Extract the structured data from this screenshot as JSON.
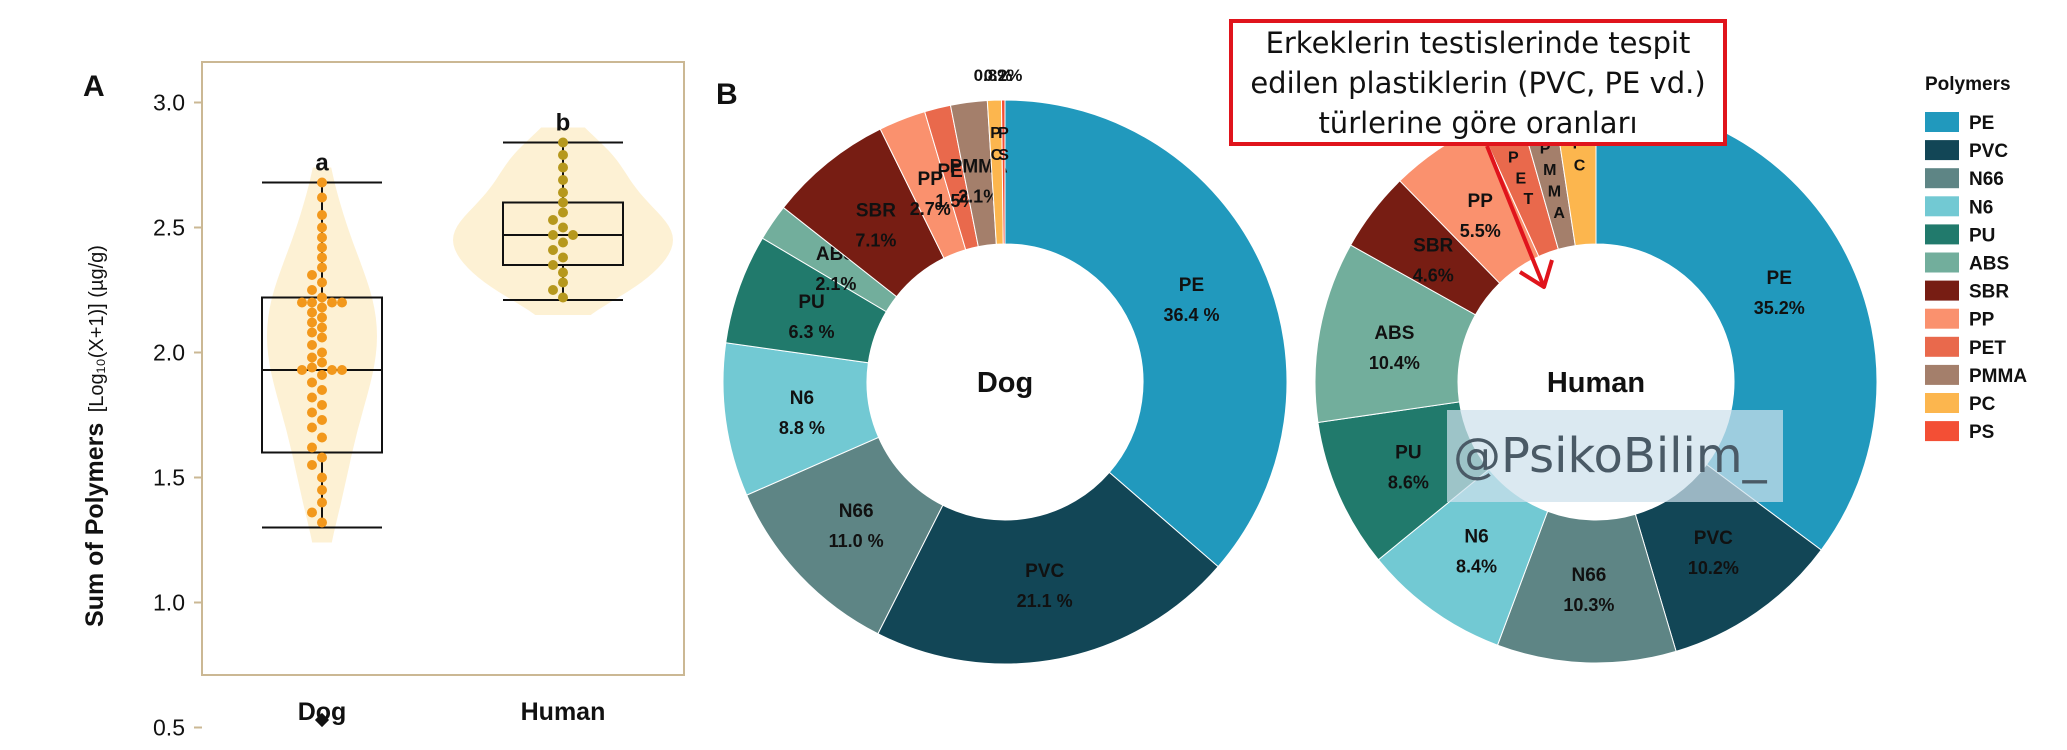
{
  "chart_data": [
    {
      "type": "box",
      "panel_label": "A",
      "ylabel_main": "Sum of Polymers",
      "ylabel_unit": "[Log₁₀(X+1)] (µg/g)",
      "ylim": [
        0.35,
        3.25
      ],
      "yticks": [
        0.5,
        1.0,
        1.5,
        2.0,
        2.5,
        3.0
      ],
      "ytick_labels": [
        "0.5",
        "1.0",
        "1.5",
        "2.0",
        "2.5",
        "3.0"
      ],
      "categories": [
        "Dog",
        "Human"
      ],
      "significance": [
        "a",
        "b"
      ],
      "colors": {
        "Dog": "#f2981c",
        "Human": "#b6981d",
        "violin": "#fdefcf",
        "frame": "#cbb894"
      },
      "boxes": [
        {
          "name": "Dog",
          "whisker_low": 1.3,
          "q1": 1.6,
          "median": 1.93,
          "q3": 2.22,
          "whisker_high": 2.68,
          "outliers": [
            0.53
          ],
          "points": [
            2.68,
            2.62,
            2.55,
            2.5,
            2.46,
            2.42,
            2.38,
            2.34,
            2.31,
            2.28,
            2.25,
            2.22,
            2.2,
            2.2,
            2.2,
            2.2,
            2.18,
            2.16,
            2.14,
            2.12,
            2.1,
            2.08,
            2.06,
            2.03,
            2.0,
            1.98,
            1.96,
            1.94,
            1.93,
            1.93,
            1.93,
            1.91,
            1.88,
            1.85,
            1.82,
            1.79,
            1.76,
            1.73,
            1.7,
            1.66,
            1.62,
            1.58,
            1.55,
            1.5,
            1.45,
            1.4,
            1.36,
            1.32
          ]
        },
        {
          "name": "Human",
          "whisker_low": 2.21,
          "q1": 2.35,
          "median": 2.47,
          "q3": 2.6,
          "whisker_high": 2.84,
          "outliers": [],
          "points": [
            2.84,
            2.79,
            2.74,
            2.69,
            2.64,
            2.6,
            2.56,
            2.53,
            2.5,
            2.47,
            2.47,
            2.44,
            2.41,
            2.38,
            2.35,
            2.32,
            2.28,
            2.25,
            2.22
          ]
        }
      ]
    },
    {
      "type": "pie",
      "panel_label": "B",
      "center_label": "Dog",
      "slices": [
        {
          "name": "PE",
          "value": 36.4,
          "label": "36.4 %"
        },
        {
          "name": "PVC",
          "value": 21.1,
          "label": "21.1 %"
        },
        {
          "name": "N66",
          "value": 11.0,
          "label": "11.0  %"
        },
        {
          "name": "N6",
          "value": 8.8,
          "label": "8.8 %"
        },
        {
          "name": "PU",
          "value": 6.3,
          "label": "6.3 %"
        },
        {
          "name": "ABS",
          "value": 2.1,
          "label": "2.1%"
        },
        {
          "name": "SBR",
          "value": 7.1,
          "label": "7.1%"
        },
        {
          "name": "PP",
          "value": 2.7,
          "label": "2.7%"
        },
        {
          "name": "PET",
          "value": 1.5,
          "label": "1.5%"
        },
        {
          "name": "PMMA",
          "value": 2.1,
          "label": "2.1%"
        },
        {
          "name": "PC",
          "value": 0.8,
          "label": "0.8%"
        },
        {
          "name": "PS",
          "value": 0.2,
          "label": "0.2%"
        }
      ]
    },
    {
      "type": "pie",
      "center_label": "Human",
      "slices": [
        {
          "name": "PE",
          "value": 35.2,
          "label": "35.2%"
        },
        {
          "name": "PVC",
          "value": 10.2,
          "label": "10.2%"
        },
        {
          "name": "N66",
          "value": 10.3,
          "label": "10.3%"
        },
        {
          "name": "N6",
          "value": 8.4,
          "label": "8.4%"
        },
        {
          "name": "PU",
          "value": 8.6,
          "label": "8.6%"
        },
        {
          "name": "ABS",
          "value": 10.4,
          "label": "10.4%"
        },
        {
          "name": "SBR",
          "value": 4.6,
          "label": "4.6%"
        },
        {
          "name": "PP",
          "value": 5.5,
          "label": "5.5%"
        },
        {
          "name": "PET",
          "value": 2.4,
          "label": ""
        },
        {
          "name": "PMMA",
          "value": 2.0,
          "label": ""
        },
        {
          "name": "PC",
          "value": 2.4,
          "label": ""
        }
      ]
    }
  ],
  "legend": {
    "title": "Polymers",
    "items": [
      {
        "name": "PE",
        "color": "#2199bd"
      },
      {
        "name": "PVC",
        "color": "#124656"
      },
      {
        "name": "N66",
        "color": "#5e8585"
      },
      {
        "name": "N6",
        "color": "#72c9d3"
      },
      {
        "name": "PU",
        "color": "#217a6c"
      },
      {
        "name": "ABS",
        "color": "#72ae9c"
      },
      {
        "name": "SBR",
        "color": "#771d13"
      },
      {
        "name": "PP",
        "color": "#fa916e"
      },
      {
        "name": "PET",
        "color": "#e9694c"
      },
      {
        "name": "PMMA",
        "color": "#a47f6b"
      },
      {
        "name": "PC",
        "color": "#fcb64e"
      },
      {
        "name": "PS",
        "color": "#f34f35"
      }
    ]
  },
  "annotation": {
    "text": "Erkeklerin testislerinde tespit\nedilen plastiklerin (PVC, PE vd.)\ntürlerine göre oranları",
    "border_color": "#e0141c"
  },
  "watermark": "@PsikoBilim_"
}
